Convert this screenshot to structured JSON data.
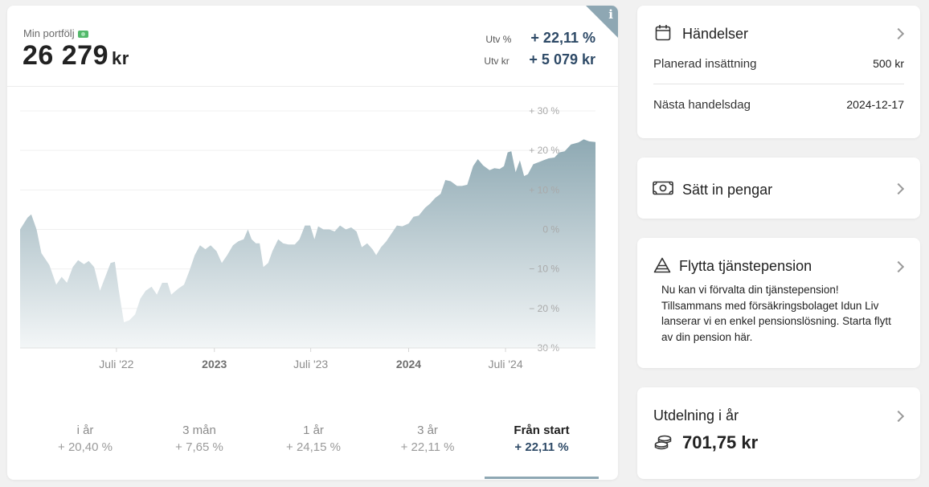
{
  "portfolio": {
    "label": "Min portfölj",
    "label_icon": "money-bill-icon",
    "value": "26 279",
    "unit": "kr",
    "dev_pct_label": "Utv %",
    "dev_pct_value": "+ 22,11 %",
    "dev_kr_label": "Utv kr",
    "dev_kr_value": "+ 5 079 kr",
    "info_glyph": "i"
  },
  "chart_data": {
    "type": "area",
    "x_ticks": [
      "Juli '22",
      "2023",
      "Juli '23",
      "2024",
      "Juli '24"
    ],
    "x_ticks_bold": [
      "2023",
      "2024"
    ],
    "y_ticks": [
      "+ 30 %",
      "+ 20 %",
      "+ 10 %",
      "0 %",
      "− 10 %",
      "− 20 %",
      "− 30 %"
    ],
    "ylim": [
      -30,
      30
    ],
    "x_start": "2022-01-01",
    "x_end": "2024-12-17",
    "y_unit": "%",
    "points": [
      [
        "2022-01-01",
        0
      ],
      [
        "2022-01-15",
        3
      ],
      [
        "2022-01-22",
        3.8
      ],
      [
        "2022-02-01",
        0
      ],
      [
        "2022-02-10",
        -6
      ],
      [
        "2022-02-25",
        -9
      ],
      [
        "2022-03-10",
        -14
      ],
      [
        "2022-03-20",
        -12
      ],
      [
        "2022-03-30",
        -13.5
      ],
      [
        "2022-04-10",
        -9.5
      ],
      [
        "2022-04-20",
        -7.8
      ],
      [
        "2022-05-01",
        -8.8
      ],
      [
        "2022-05-10",
        -8
      ],
      [
        "2022-05-20",
        -9.5
      ],
      [
        "2022-05-31",
        -15.5
      ],
      [
        "2022-06-10",
        -12
      ],
      [
        "2022-06-20",
        -8.5
      ],
      [
        "2022-06-28",
        -8.2
      ],
      [
        "2022-07-05",
        -15
      ],
      [
        "2022-07-15",
        -23.5
      ],
      [
        "2022-07-25",
        -23
      ],
      [
        "2022-08-05",
        -21.5
      ],
      [
        "2022-08-15",
        -17.5
      ],
      [
        "2022-08-25",
        -15.5
      ],
      [
        "2022-09-05",
        -14.5
      ],
      [
        "2022-09-15",
        -16.5
      ],
      [
        "2022-09-25",
        -13.5
      ],
      [
        "2022-10-05",
        -13.5
      ],
      [
        "2022-10-12",
        -16.5
      ],
      [
        "2022-10-25",
        -15
      ],
      [
        "2022-11-05",
        -14
      ],
      [
        "2022-11-15",
        -10.5
      ],
      [
        "2022-11-25",
        -6.5
      ],
      [
        "2022-12-05",
        -4
      ],
      [
        "2022-12-15",
        -5
      ],
      [
        "2022-12-25",
        -4
      ],
      [
        "2023-01-05",
        -5.5
      ],
      [
        "2023-01-15",
        -8.5
      ],
      [
        "2023-01-25",
        -6.5
      ],
      [
        "2023-02-05",
        -4
      ],
      [
        "2023-02-15",
        -3
      ],
      [
        "2023-02-25",
        -2.5
      ],
      [
        "2023-03-05",
        0
      ],
      [
        "2023-03-12",
        -2.5
      ],
      [
        "2023-03-20",
        -3.5
      ],
      [
        "2023-03-27",
        -3.5
      ],
      [
        "2023-04-03",
        -9.5
      ],
      [
        "2023-04-12",
        -8.5
      ],
      [
        "2023-04-20",
        -5.5
      ],
      [
        "2023-05-01",
        -2.5
      ],
      [
        "2023-05-10",
        -3.5
      ],
      [
        "2023-05-20",
        -3.8
      ],
      [
        "2023-06-01",
        -3.8
      ],
      [
        "2023-06-10",
        -2.5
      ],
      [
        "2023-06-20",
        1
      ],
      [
        "2023-06-30",
        1
      ],
      [
        "2023-07-08",
        -2.5
      ],
      [
        "2023-07-15",
        0.8
      ],
      [
        "2023-07-25",
        0
      ],
      [
        "2023-08-05",
        0
      ],
      [
        "2023-08-15",
        -0.5
      ],
      [
        "2023-08-25",
        1
      ],
      [
        "2023-09-05",
        0
      ],
      [
        "2023-09-15",
        0.5
      ],
      [
        "2023-09-25",
        -0.5
      ],
      [
        "2023-10-05",
        -4.5
      ],
      [
        "2023-10-15",
        -3.5
      ],
      [
        "2023-10-25",
        -5
      ],
      [
        "2023-11-01",
        -6.5
      ],
      [
        "2023-11-10",
        -4.5
      ],
      [
        "2023-11-20",
        -3
      ],
      [
        "2023-11-30",
        -1
      ],
      [
        "2023-12-10",
        1
      ],
      [
        "2023-12-20",
        0.8
      ],
      [
        "2024-01-01",
        1.5
      ],
      [
        "2024-01-10",
        3.2
      ],
      [
        "2024-01-20",
        3.5
      ],
      [
        "2024-02-01",
        5.5
      ],
      [
        "2024-02-10",
        6.5
      ],
      [
        "2024-02-20",
        8
      ],
      [
        "2024-03-01",
        9
      ],
      [
        "2024-03-10",
        12.5
      ],
      [
        "2024-03-20",
        12.2
      ],
      [
        "2024-04-01",
        11
      ],
      [
        "2024-04-10",
        11
      ],
      [
        "2024-04-20",
        11.3
      ],
      [
        "2024-05-01",
        16
      ],
      [
        "2024-05-10",
        17.8
      ],
      [
        "2024-05-20",
        16.2
      ],
      [
        "2024-06-01",
        15
      ],
      [
        "2024-06-10",
        15.5
      ],
      [
        "2024-06-20",
        15.3
      ],
      [
        "2024-06-28",
        16
      ],
      [
        "2024-07-05",
        19.5
      ],
      [
        "2024-07-12",
        19.8
      ],
      [
        "2024-07-20",
        14.5
      ],
      [
        "2024-07-28",
        17.5
      ],
      [
        "2024-08-05",
        13.5
      ],
      [
        "2024-08-12",
        14
      ],
      [
        "2024-08-22",
        16.5
      ],
      [
        "2024-09-01",
        17
      ],
      [
        "2024-09-10",
        17.5
      ],
      [
        "2024-09-20",
        18
      ],
      [
        "2024-10-01",
        18.2
      ],
      [
        "2024-10-10",
        19.5
      ],
      [
        "2024-10-20",
        19.8
      ],
      [
        "2024-11-01",
        21.5
      ],
      [
        "2024-11-15",
        22
      ],
      [
        "2024-11-25",
        22.8
      ],
      [
        "2024-12-05",
        22.3
      ],
      [
        "2024-12-17",
        22.11
      ]
    ],
    "fill_color_top": "#8ea9b3",
    "fill_color_bottom": "#f3f6f7"
  },
  "periods": [
    {
      "label": "i år",
      "value": "+ 20,40 %"
    },
    {
      "label": "3 mån",
      "value": "+ 7,65 %"
    },
    {
      "label": "1 år",
      "value": "+ 24,15 %"
    },
    {
      "label": "3 år",
      "value": "+ 22,11 %"
    },
    {
      "label": "Från start",
      "value": "+ 22,11 %"
    }
  ],
  "active_period": "Från start",
  "events": {
    "title": "Händelser",
    "icon": "calendar-icon",
    "rows": [
      {
        "label": "Planerad insättning",
        "value": "500 kr"
      },
      {
        "label": "Nästa handelsdag",
        "value": "2024-12-17"
      }
    ]
  },
  "deposit": {
    "title": "Sätt in pengar",
    "icon": "banknote-icon"
  },
  "pension": {
    "title": "Flytta tjänstepension",
    "icon": "pyramid-icon",
    "text": "Nu kan vi förvalta din tjänstepension! Tillsammans med försäkringsbolaget Idun Liv lanserar vi en enkel pensionslösning. Starta flytt av din pension här."
  },
  "dividend": {
    "title": "Utdelning i år",
    "icon": "coins-icon",
    "amount": "701,75 kr"
  },
  "colors": {
    "accent": "#2e4a67",
    "chart_fill": "#8ea9b3",
    "muted_text": "#8b8b8b"
  }
}
